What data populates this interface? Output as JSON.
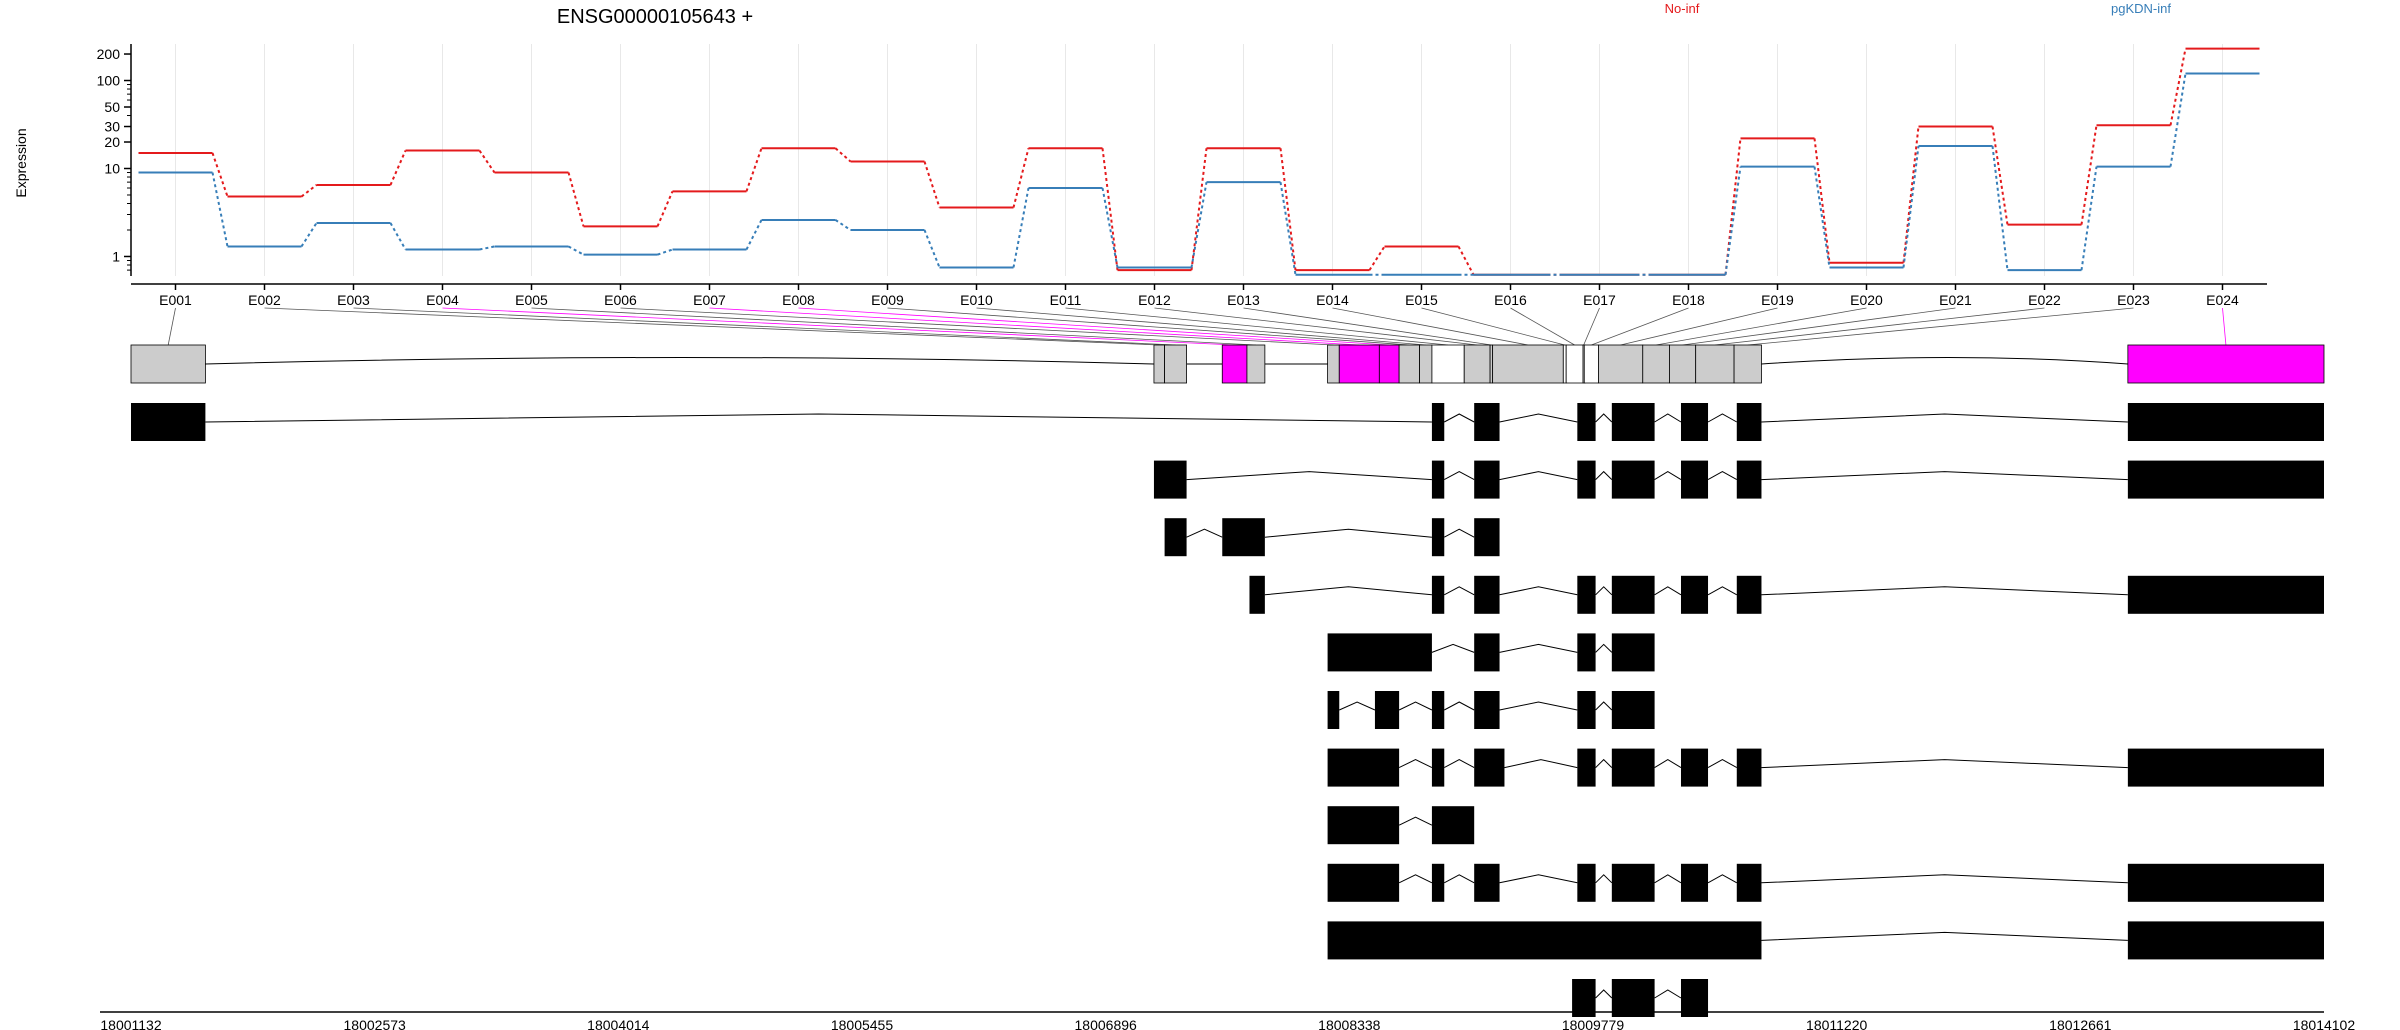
{
  "chart_data": {
    "type": "line",
    "title": "ENSG00000105643 +",
    "ylabel": "Expression",
    "xlabel": "",
    "yscale": "log",
    "ylim": [
      0.6,
      260
    ],
    "yticks": [
      {
        "value": 1,
        "label": "1"
      },
      {
        "value": 10,
        "label": "10"
      },
      {
        "value": 20,
        "label": "20"
      },
      {
        "value": 30,
        "label": "30"
      },
      {
        "value": 50,
        "label": "50"
      },
      {
        "value": 100,
        "label": "100"
      },
      {
        "value": 200,
        "label": "200"
      }
    ],
    "grid": true,
    "legend_placement": "top",
    "categories": [
      "E001",
      "E002",
      "E003",
      "E004",
      "E005",
      "E006",
      "E007",
      "E008",
      "E009",
      "E010",
      "E011",
      "E012",
      "E013",
      "E014",
      "E015",
      "E016",
      "E017",
      "E018",
      "E019",
      "E020",
      "E021",
      "E022",
      "E023",
      "E024"
    ],
    "series": [
      {
        "name": "No-inf",
        "color": "#e41a1c",
        "values": [
          15,
          4.8,
          6.5,
          16,
          9,
          2.2,
          5.5,
          17,
          12,
          3.6,
          17,
          0.7,
          17,
          0.7,
          1.3,
          0.62,
          0.62,
          0.62,
          22,
          0.85,
          30,
          2.3,
          31,
          230
        ]
      },
      {
        "name": "pgKDN-inf",
        "color": "#377eb8",
        "values": [
          9,
          1.3,
          2.4,
          1.2,
          1.3,
          1.05,
          1.2,
          2.6,
          2.0,
          0.75,
          6,
          0.75,
          7,
          0.62,
          0.62,
          0.62,
          0.62,
          0.62,
          10.5,
          0.75,
          18,
          0.7,
          10.5,
          120
        ]
      }
    ],
    "genomic_axis": {
      "start": 18001132,
      "end": 18014102,
      "tick_labels": [
        "18001132",
        "18002573",
        "18004014",
        "18005455",
        "18006896",
        "18008338",
        "18009779",
        "18011220",
        "18012661",
        "18014102"
      ]
    },
    "exon_bins": [
      {
        "id": "E001",
        "start": 18001132,
        "end": 18001572,
        "fill": "#cccccc"
      },
      {
        "id": "E002",
        "start": 18007182,
        "end": 18007245,
        "fill": "#cccccc"
      },
      {
        "id": "E003",
        "start": 18007245,
        "end": 18007375,
        "fill": "#cccccc"
      },
      {
        "id": "E004",
        "start": 18007586,
        "end": 18007732,
        "fill": "#ff00ff"
      },
      {
        "id": "E005",
        "start": 18007732,
        "end": 18007838,
        "fill": "#cccccc"
      },
      {
        "id": "E006",
        "start": 18008209,
        "end": 18008278,
        "fill": "#cccccc"
      },
      {
        "id": "E007",
        "start": 18008278,
        "end": 18008515,
        "fill": "#ff00ff"
      },
      {
        "id": "E008",
        "start": 18008515,
        "end": 18008632,
        "fill": "#ff00ff"
      },
      {
        "id": "E009",
        "start": 18008632,
        "end": 18008753,
        "fill": "#cccccc"
      },
      {
        "id": "E010",
        "start": 18008753,
        "end": 18008826,
        "fill": "#cccccc"
      },
      {
        "id": "E011",
        "start": 18008826,
        "end": 18009017,
        "fill": "#ffffff"
      },
      {
        "id": "E012",
        "start": 18009017,
        "end": 18009170,
        "fill": "#cccccc"
      },
      {
        "id": "E013",
        "start": 18009170,
        "end": 18009185,
        "fill": "#cccccc"
      },
      {
        "id": "E014",
        "start": 18009185,
        "end": 18009603,
        "fill": "#cccccc"
      },
      {
        "id": "E015",
        "start": 18009603,
        "end": 18009620,
        "fill": "#ffffff"
      },
      {
        "id": "E016",
        "start": 18009620,
        "end": 18009720,
        "fill": "#ffffff"
      },
      {
        "id": "E017",
        "start": 18009720,
        "end": 18009727,
        "fill": "#ffffff"
      },
      {
        "id": "E018",
        "start": 18009727,
        "end": 18009811,
        "fill": "#ffffff"
      },
      {
        "id": "E019",
        "start": 18009811,
        "end": 18010073,
        "fill": "#cccccc"
      },
      {
        "id": "E020",
        "start": 18010073,
        "end": 18010231,
        "fill": "#cccccc"
      },
      {
        "id": "E021",
        "start": 18010231,
        "end": 18010386,
        "fill": "#cccccc"
      },
      {
        "id": "E022",
        "start": 18010386,
        "end": 18010613,
        "fill": "#cccccc"
      },
      {
        "id": "E023",
        "start": 18010613,
        "end": 18010775,
        "fill": "#cccccc"
      },
      {
        "id": "E024",
        "start": 18012942,
        "end": 18014102,
        "fill": "#ff00ff"
      }
    ],
    "transcripts": [
      [
        [
          18001132,
          18001572
        ],
        [
          18008826,
          18008899
        ],
        [
          18009076,
          18009226
        ],
        [
          18009686,
          18009794
        ],
        [
          18009890,
          18010143
        ],
        [
          18010299,
          18010459
        ],
        [
          18010629,
          18010775
        ],
        [
          18012942,
          18014102
        ]
      ],
      [
        [
          18007182,
          18007375
        ],
        [
          18008826,
          18008899
        ],
        [
          18009076,
          18009226
        ],
        [
          18009686,
          18009794
        ],
        [
          18009890,
          18010143
        ],
        [
          18010299,
          18010459
        ],
        [
          18010629,
          18010775
        ],
        [
          18012942,
          18014102
        ]
      ],
      [
        [
          18007245,
          18007375
        ],
        [
          18007586,
          18007838
        ],
        [
          18008826,
          18008899
        ],
        [
          18009076,
          18009226
        ]
      ],
      [
        [
          18007747,
          18007838
        ],
        [
          18008826,
          18008899
        ],
        [
          18009076,
          18009226
        ],
        [
          18009686,
          18009794
        ],
        [
          18009890,
          18010143
        ],
        [
          18010299,
          18010459
        ],
        [
          18010629,
          18010775
        ],
        [
          18012942,
          18014102
        ]
      ],
      [
        [
          18008209,
          18008826
        ],
        [
          18009076,
          18009226
        ],
        [
          18009686,
          18009794
        ],
        [
          18009890,
          18010143
        ]
      ],
      [
        [
          18008209,
          18008278
        ],
        [
          18008489,
          18008632
        ],
        [
          18008826,
          18008899
        ],
        [
          18009076,
          18009226
        ],
        [
          18009686,
          18009794
        ],
        [
          18009890,
          18010143
        ]
      ],
      [
        [
          18008209,
          18008632
        ],
        [
          18008826,
          18008899
        ],
        [
          18009076,
          18009255
        ],
        [
          18009686,
          18009794
        ],
        [
          18009890,
          18010143
        ],
        [
          18010299,
          18010459
        ],
        [
          18010629,
          18010775
        ],
        [
          18012942,
          18014102
        ]
      ],
      [
        [
          18008209,
          18008632
        ],
        [
          18008826,
          18009076
        ]
      ],
      [
        [
          18008209,
          18008632
        ],
        [
          18008826,
          18008899
        ],
        [
          18009076,
          18009226
        ],
        [
          18009686,
          18009794
        ],
        [
          18009890,
          18010143
        ],
        [
          18010299,
          18010459
        ],
        [
          18010629,
          18010775
        ],
        [
          18012942,
          18014102
        ]
      ],
      [
        [
          18008209,
          18010775
        ],
        [
          18012942,
          18014102
        ]
      ],
      [
        [
          18009655,
          18009794
        ],
        [
          18009890,
          18010143
        ],
        [
          18010299,
          18010459
        ]
      ]
    ]
  }
}
